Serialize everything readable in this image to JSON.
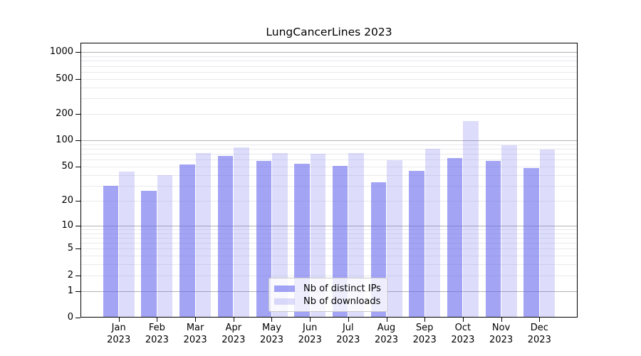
{
  "chart_data": {
    "type": "bar",
    "title": "LungCancerLines 2023",
    "categories": [
      "Jan",
      "Feb",
      "Mar",
      "Apr",
      "May",
      "Jun",
      "Jul",
      "Aug",
      "Sep",
      "Oct",
      "Nov",
      "Dec"
    ],
    "year_label": "2023",
    "series": [
      {
        "name": "Nb of distinct IPs",
        "color": "rgba(99,99,237,0.58)",
        "values": [
          30,
          26,
          53,
          66,
          58,
          54,
          51,
          33,
          45,
          63,
          58,
          48
        ]
      },
      {
        "name": "Nb of downloads",
        "color": "rgba(99,99,237,0.22)",
        "values": [
          44,
          40,
          72,
          83,
          72,
          70,
          72,
          59,
          80,
          166,
          88,
          78
        ]
      }
    ],
    "xlabel": "",
    "ylabel": "",
    "yscale": "symlog (log10(1+v))",
    "ylim": [
      0,
      1281
    ],
    "yticks": [
      0,
      1,
      2,
      5,
      10,
      20,
      50,
      100,
      200,
      500,
      1000
    ],
    "ytick_labels": [
      "0",
      "1",
      "2",
      "5",
      "10",
      "20",
      "50",
      "100",
      "200",
      "500",
      "1000"
    ],
    "grid": true,
    "major_gridlines": [
      1,
      10,
      100,
      1000
    ],
    "minor_gridlines": [
      2,
      3,
      4,
      5,
      6,
      7,
      8,
      9,
      20,
      30,
      40,
      50,
      60,
      70,
      80,
      90,
      200,
      300,
      400,
      500,
      600,
      700,
      800,
      900
    ],
    "legend": {
      "position": "lower center-right inside plot",
      "entries": [
        "Nb of distinct IPs",
        "Nb of downloads"
      ]
    },
    "colors": {
      "bar_distinct_ips_on_white": "#a7a7f1",
      "bar_downloads_on_white": "#dcdcf9",
      "major_grid": "#b3b3b3",
      "minor_grid": "#e9e9ee",
      "spine": "#000000",
      "background": "#ffffff"
    }
  }
}
